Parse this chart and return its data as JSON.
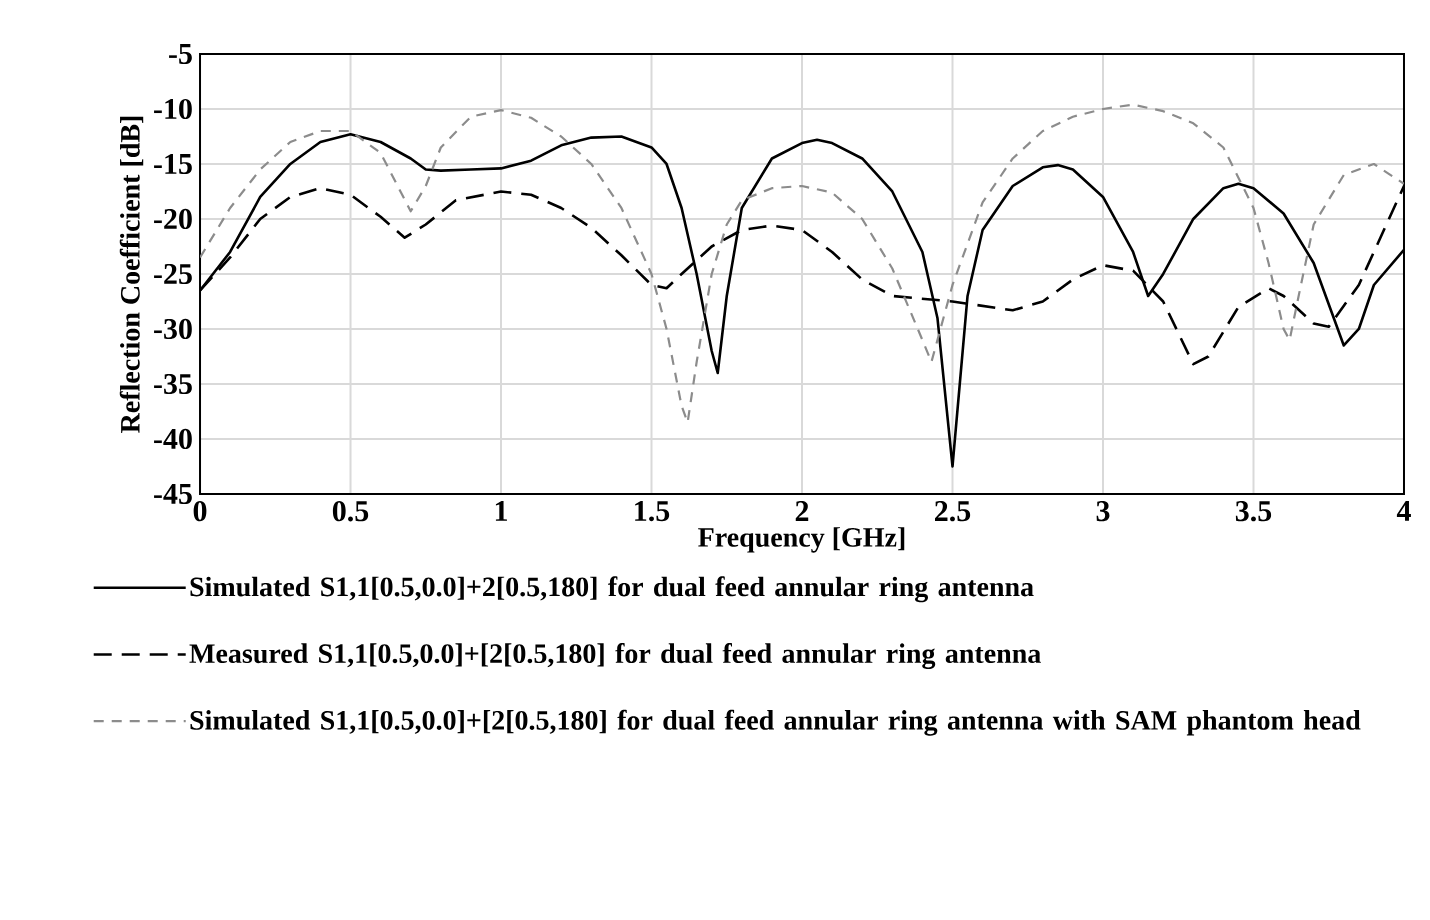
{
  "chart_data": {
    "type": "line",
    "xlabel": "Frequency [GHz]",
    "ylabel": "Reflection Coefficient [dB]",
    "xlim": [
      0,
      4
    ],
    "ylim": [
      -45,
      -5
    ],
    "xticks": [
      0,
      0.5,
      1,
      1.5,
      2,
      2.5,
      3,
      3.5,
      4
    ],
    "yticks": [
      -45,
      -40,
      -35,
      -30,
      -25,
      -20,
      -15,
      -10,
      -5
    ],
    "grid": true,
    "legend": "bottom",
    "series": [
      {
        "name": "Simulated S1,1[0.5,0.0]+2[0.5,180] for dual feed annular ring antenna",
        "color": "#000000",
        "line_style": "solid",
        "x": [
          0,
          0.1,
          0.2,
          0.3,
          0.4,
          0.5,
          0.6,
          0.7,
          0.75,
          0.8,
          0.9,
          1.0,
          1.1,
          1.2,
          1.3,
          1.4,
          1.5,
          1.55,
          1.6,
          1.65,
          1.7,
          1.72,
          1.75,
          1.8,
          1.9,
          2.0,
          2.05,
          2.1,
          2.2,
          2.3,
          2.4,
          2.45,
          2.5,
          2.55,
          2.6,
          2.7,
          2.8,
          2.85,
          2.9,
          3.0,
          3.1,
          3.15,
          3.2,
          3.3,
          3.4,
          3.45,
          3.5,
          3.6,
          3.7,
          3.8,
          3.85,
          3.9,
          4.0
        ],
        "values": [
          -26.5,
          -23,
          -18,
          -15,
          -13,
          -12.3,
          -13,
          -14.5,
          -15.5,
          -15.6,
          -15.5,
          -15.4,
          -14.7,
          -13.3,
          -12.6,
          -12.5,
          -13.5,
          -15,
          -19,
          -25,
          -32,
          -34,
          -27,
          -19,
          -14.5,
          -13.1,
          -12.8,
          -13.1,
          -14.5,
          -17.5,
          -23,
          -29,
          -42.5,
          -27,
          -21,
          -17,
          -15.3,
          -15.1,
          -15.5,
          -18,
          -23,
          -27,
          -25,
          -20,
          -17.2,
          -16.8,
          -17.2,
          -19.5,
          -24,
          -31.5,
          -30,
          -26,
          -22.8
        ]
      },
      {
        "name": "Measured S1,1[0.5,0.0]+[2[0.5,180] for dual feed annular ring antenna",
        "color": "#000000",
        "line_style": "dashed",
        "x": [
          0,
          0.1,
          0.2,
          0.3,
          0.4,
          0.5,
          0.6,
          0.68,
          0.75,
          0.85,
          1.0,
          1.1,
          1.2,
          1.3,
          1.4,
          1.5,
          1.55,
          1.6,
          1.7,
          1.8,
          1.9,
          2.0,
          2.1,
          2.2,
          2.3,
          2.5,
          2.7,
          2.8,
          2.9,
          3.0,
          3.1,
          3.2,
          3.3,
          3.35,
          3.45,
          3.55,
          3.6,
          3.7,
          3.75,
          3.85,
          3.95,
          4.0
        ],
        "values": [
          -26.5,
          -23.5,
          -20,
          -18,
          -17.2,
          -17.8,
          -19.8,
          -21.7,
          -20.5,
          -18.3,
          -17.5,
          -17.8,
          -19,
          -20.8,
          -23.3,
          -26,
          -26.3,
          -25,
          -22.5,
          -21,
          -20.6,
          -21,
          -23,
          -25.5,
          -27,
          -27.5,
          -28.3,
          -27.5,
          -25.5,
          -24.2,
          -24.7,
          -27.5,
          -33.2,
          -32.5,
          -28,
          -26.3,
          -27,
          -29.5,
          -29.8,
          -26,
          -20,
          -17
        ]
      },
      {
        "name": "Simulated S1,1[0.5,0.0]+[2[0.5,180] for dual feed annular ring antenna with SAM phantom head",
        "color": "#8c8c8c",
        "line_style": "dashed",
        "x": [
          0,
          0.1,
          0.2,
          0.3,
          0.4,
          0.5,
          0.6,
          0.7,
          0.75,
          0.8,
          0.9,
          1.0,
          1.1,
          1.2,
          1.3,
          1.4,
          1.5,
          1.55,
          1.6,
          1.62,
          1.65,
          1.7,
          1.75,
          1.8,
          1.9,
          2.0,
          2.1,
          2.2,
          2.3,
          2.4,
          2.43,
          2.5,
          2.6,
          2.7,
          2.8,
          2.9,
          3.0,
          3.1,
          3.2,
          3.3,
          3.4,
          3.5,
          3.55,
          3.6,
          3.62,
          3.65,
          3.7,
          3.8,
          3.9,
          4.0
        ],
        "values": [
          -23.5,
          -19,
          -15.5,
          -13,
          -12,
          -12,
          -14,
          -19.3,
          -17,
          -13.5,
          -10.7,
          -10.1,
          -10.8,
          -12.5,
          -15,
          -19,
          -25,
          -30,
          -37,
          -38.5,
          -33,
          -25,
          -20.5,
          -18.3,
          -17.2,
          -17,
          -17.6,
          -20,
          -24.5,
          -31,
          -33,
          -26,
          -18.5,
          -14.5,
          -12,
          -10.7,
          -10,
          -9.6,
          -10.2,
          -11.3,
          -13.5,
          -19,
          -24,
          -30,
          -31,
          -27,
          -20.5,
          -16,
          -15,
          -16.8
        ]
      }
    ]
  }
}
